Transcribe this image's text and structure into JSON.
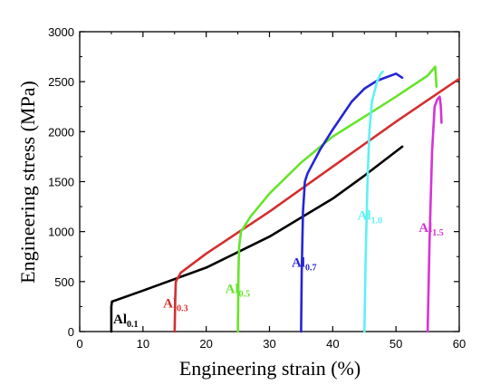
{
  "chart_data": {
    "type": "line",
    "title": "",
    "xlabel": "Engineering strain (%)",
    "ylabel": "Engineering stress (MPa)",
    "xlim": [
      0,
      60
    ],
    "ylim": [
      0,
      3000
    ],
    "xticks": [
      0,
      10,
      20,
      30,
      40,
      50,
      60
    ],
    "yticks": [
      0,
      500,
      1000,
      1500,
      2000,
      2500,
      3000
    ],
    "xtick_labels": [
      "0",
      "10",
      "20",
      "30",
      "40",
      "50",
      "60"
    ],
    "ytick_labels": [
      "0",
      "500",
      "1000",
      "1500",
      "2000",
      "2500",
      "3000"
    ],
    "grid": false,
    "series": [
      {
        "label_base": "Al",
        "label_sub": "0.1",
        "color": "#000000",
        "x": [
          5,
          5,
          5.1,
          10,
          20,
          30,
          40,
          45,
          51
        ],
        "y": [
          0,
          250,
          300,
          410,
          640,
          950,
          1330,
          1560,
          1850
        ]
      },
      {
        "label_base": "Al",
        "label_sub": "0.3",
        "color": "#d32f2f",
        "x": [
          15,
          15.1,
          15.2,
          16,
          20,
          30,
          40,
          50,
          60
        ],
        "y": [
          0,
          300,
          500,
          590,
          780,
          1200,
          1650,
          2100,
          2530
        ]
      },
      {
        "label_base": "Al",
        "label_sub": "0.5",
        "color": "#66e42c",
        "x": [
          25,
          25.1,
          25.2,
          25.5,
          27,
          30,
          35,
          40,
          45,
          50,
          55,
          56.2,
          56.4
        ],
        "y": [
          0,
          600,
          850,
          1000,
          1150,
          1380,
          1690,
          1950,
          2150,
          2350,
          2560,
          2650,
          2450
        ]
      },
      {
        "label_base": "Al",
        "label_sub": "0.7",
        "color": "#2525d6",
        "x": [
          35,
          35.1,
          35.3,
          35.6,
          36,
          38,
          40,
          43,
          45,
          47,
          50,
          51
        ],
        "y": [
          0,
          600,
          1200,
          1500,
          1580,
          1820,
          2020,
          2300,
          2430,
          2510,
          2580,
          2540
        ]
      },
      {
        "label_base": "Al",
        "label_sub": "1.0",
        "color": "#5ff0f5",
        "x": [
          45,
          45.2,
          45.5,
          45.8,
          46.2,
          47,
          47.6,
          47.9
        ],
        "y": [
          0,
          700,
          1500,
          2000,
          2300,
          2500,
          2580,
          2600
        ]
      },
      {
        "label_base": "Al",
        "label_sub": "1.5",
        "color": "#d633d6",
        "x": [
          55,
          55.3,
          55.7,
          56.1,
          56.5,
          56.9,
          57.1,
          57.2
        ],
        "y": [
          0,
          900,
          1800,
          2250,
          2320,
          2350,
          2250,
          2090
        ]
      }
    ]
  }
}
